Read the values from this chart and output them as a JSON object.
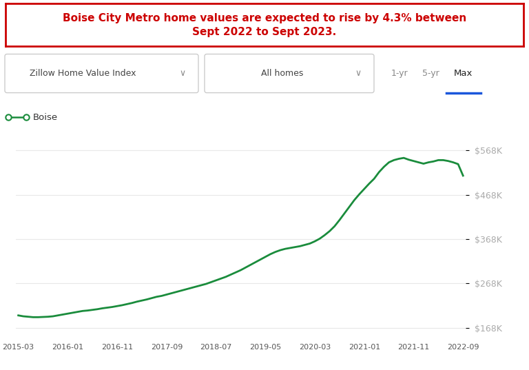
{
  "title_text": "Boise City Metro home values are expected to rise by 4.3% between\nSept 2022 to Sept 2023.",
  "title_color": "#cc0000",
  "title_box_color": "#cc0000",
  "background_color": "#ffffff",
  "line_color": "#1a8c3c",
  "legend_label": "Boise",
  "ytick_labels": [
    "$168K",
    "$268K",
    "$368K",
    "$468K",
    "$568K"
  ],
  "ytick_values": [
    168000,
    268000,
    368000,
    468000,
    568000
  ],
  "ylim": [
    148000,
    590000
  ],
  "xtick_labels": [
    "2015-03",
    "2016-01",
    "2016-11",
    "2017-09",
    "2018-07",
    "2019-05",
    "2020-03",
    "2021-01",
    "2021-11",
    "2022-09"
  ],
  "filter_labels": [
    "Zillow Home Value Index",
    "All homes"
  ],
  "range_labels": [
    "1-yr",
    "5-yr",
    "Max"
  ],
  "active_range": "Max",
  "active_range_color": "#1a56db",
  "x_data": [
    0,
    1,
    2,
    3,
    4,
    5,
    6,
    7,
    8,
    9,
    10,
    11,
    12,
    13,
    14,
    15,
    16,
    17,
    18,
    19,
    20,
    21,
    22,
    23,
    24,
    25,
    26,
    27,
    28,
    29,
    30,
    31,
    32,
    33,
    34,
    35,
    36,
    37,
    38,
    39,
    40,
    41,
    42,
    43,
    44,
    45,
    46,
    47,
    48,
    49,
    50,
    51,
    52,
    53,
    54,
    55,
    56,
    57,
    58,
    59,
    60,
    61,
    62,
    63,
    64,
    65,
    66,
    67,
    68,
    69,
    70,
    71,
    72,
    73,
    74,
    75,
    76,
    77,
    78,
    79,
    80,
    81,
    82,
    83,
    84,
    85,
    86,
    87,
    88,
    89,
    90
  ],
  "y_data": [
    196000,
    194000,
    193000,
    192000,
    192000,
    192500,
    193000,
    194000,
    196000,
    198000,
    200000,
    202000,
    204000,
    206000,
    207000,
    208500,
    210000,
    212000,
    213500,
    215000,
    217000,
    219000,
    221500,
    224000,
    227000,
    229500,
    232000,
    235000,
    238000,
    240000,
    243000,
    246000,
    249000,
    252000,
    255000,
    258000,
    261000,
    264000,
    267000,
    271000,
    275000,
    279000,
    283000,
    288000,
    293000,
    298000,
    304000,
    310000,
    316000,
    322000,
    328000,
    334000,
    339000,
    343000,
    346000,
    348000,
    350000,
    352000,
    355000,
    358000,
    363000,
    369000,
    377000,
    386000,
    397000,
    411000,
    426000,
    441000,
    456000,
    469000,
    481000,
    493000,
    504000,
    519000,
    531000,
    541000,
    546000,
    549000,
    551000,
    547000,
    544000,
    541000,
    538000,
    541000,
    543000,
    546000,
    546000,
    544000,
    541000,
    537000,
    511000
  ],
  "grid_color": "#e8e8e8",
  "tick_color": "#aaaaaa",
  "ctrl_box_edge": "#cccccc",
  "ctrl_text_color": "#555555",
  "legend_dot_size": 6,
  "line_width": 2.0
}
